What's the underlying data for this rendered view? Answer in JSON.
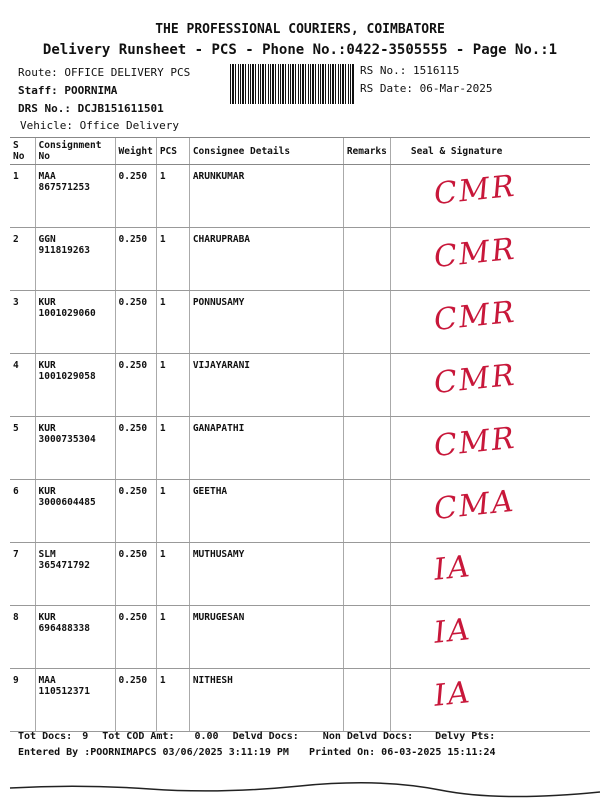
{
  "header": {
    "company": "THE PROFESSIONAL COURIERS, COIMBATORE",
    "subtitle": "Delivery Runsheet - PCS - Phone No.:0422-3505555 - Page No.:1",
    "route": "Route: OFFICE DELIVERY PCS",
    "staff": "Staff: POORNIMA",
    "drs_no": "DRS No.: DCJB151611501",
    "vehicle": "Vehicle: Office Delivery",
    "rs_no": "RS No.: 1516115",
    "rs_date": "RS Date: 06-Mar-2025"
  },
  "table": {
    "columns": [
      "S No",
      "Consignment No",
      "Weight",
      "PCS",
      "Consignee Details",
      "Remarks",
      "Seal & Signature"
    ],
    "rows": [
      {
        "sno": "1",
        "consignment": "MAA 867571253",
        "weight": "0.250",
        "pcs": "1",
        "consignee": "ARUNKUMAR",
        "remarks": "",
        "signature": "CMR"
      },
      {
        "sno": "2",
        "consignment": "GGN 911819263",
        "weight": "0.250",
        "pcs": "1",
        "consignee": "CHARUPRABA",
        "remarks": "",
        "signature": "CMR"
      },
      {
        "sno": "3",
        "consignment": "KUR 1001029060",
        "weight": "0.250",
        "pcs": "1",
        "consignee": "PONNUSAMY",
        "remarks": "",
        "signature": "CMR"
      },
      {
        "sno": "4",
        "consignment": "KUR 1001029058",
        "weight": "0.250",
        "pcs": "1",
        "consignee": "VIJAYARANI",
        "remarks": "",
        "signature": "CMR"
      },
      {
        "sno": "5",
        "consignment": "KUR 3000735304",
        "weight": "0.250",
        "pcs": "1",
        "consignee": "GANAPATHI",
        "remarks": "",
        "signature": "CMR"
      },
      {
        "sno": "6",
        "consignment": "KUR 3000604485",
        "weight": "0.250",
        "pcs": "1",
        "consignee": "GEETHA",
        "remarks": "",
        "signature": "CMA"
      },
      {
        "sno": "7",
        "consignment": "SLM 365471792",
        "weight": "0.250",
        "pcs": "1",
        "consignee": "MUTHUSAMY",
        "remarks": "",
        "signature": "IA"
      },
      {
        "sno": "8",
        "consignment": "KUR 696488338",
        "weight": "0.250",
        "pcs": "1",
        "consignee": "MURUGESAN",
        "remarks": "",
        "signature": "IA"
      },
      {
        "sno": "9",
        "consignment": "MAA 110512371",
        "weight": "0.250",
        "pcs": "1",
        "consignee": "NITHESH",
        "remarks": "",
        "signature": "IA"
      }
    ]
  },
  "footer": {
    "tot_docs_label": "Tot Docs:",
    "tot_docs": "9",
    "tot_cod_label": "Tot COD Amt:",
    "tot_cod": "0.00",
    "delvd_docs_label": "Delvd Docs:",
    "non_delvd_label": "Non Delvd Docs:",
    "delvy_pts_label": "Delvy Pts:",
    "entered_by": "Entered By :POORNIMAPCS 03/06/2025 3:11:19 PM",
    "printed_on": "Printed On: 06-03-2025 15:11:24"
  },
  "colors": {
    "signature_ink": "#c8173a"
  }
}
